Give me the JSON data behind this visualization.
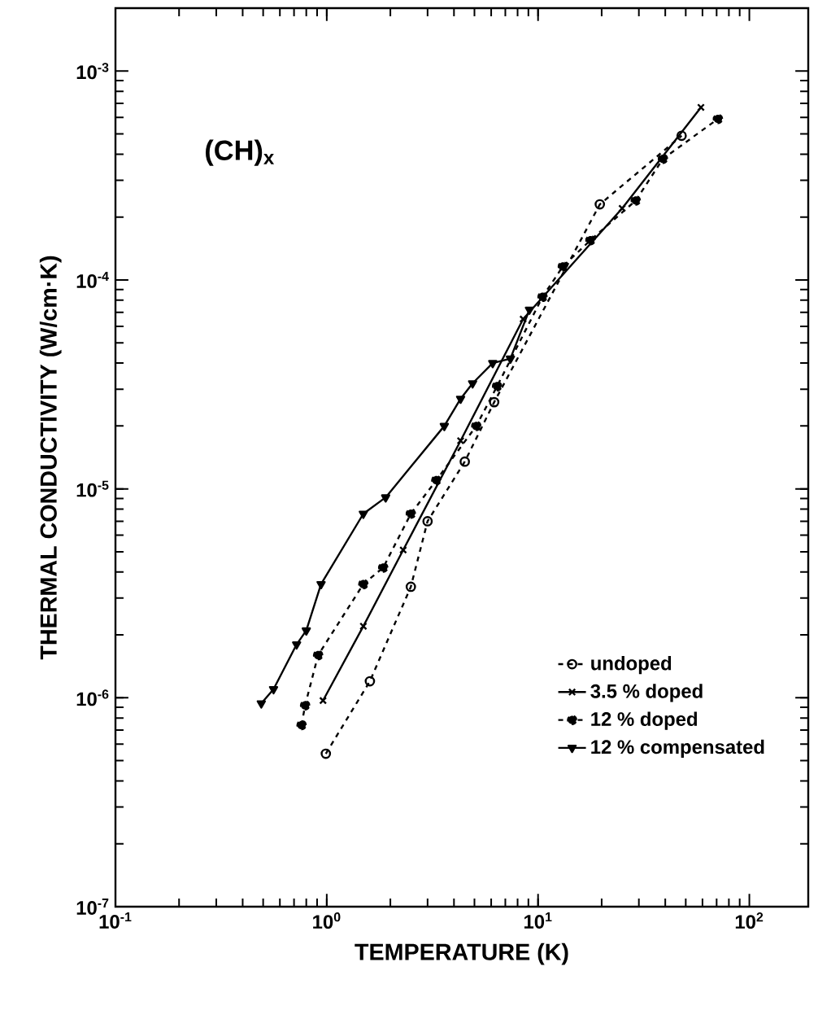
{
  "chart_data": {
    "type": "line",
    "xlabel": "TEMPERATURE (K)",
    "ylabel": "THERMAL CONDUCTIVITY (W/cm·K)",
    "annotations": [
      "(CH)$_{x}$"
    ],
    "log": "xy",
    "xlim": [
      0.1,
      190
    ],
    "ylim": [
      1e-07,
      0.002
    ],
    "xticks": [
      {
        "value": 0.1,
        "label": "10$^{-1}$"
      },
      {
        "value": 1,
        "label": "10$^{0}$"
      },
      {
        "value": 10,
        "label": "10$^{1}$"
      },
      {
        "value": 100,
        "label": "10$^{2}$"
      }
    ],
    "yticks": [
      {
        "value": 1e-07,
        "label": "10$^{-7}$"
      },
      {
        "value": 1e-06,
        "label": "10$^{-6}$"
      },
      {
        "value": 1e-05,
        "label": "10$^{-5}$"
      },
      {
        "value": 0.0001,
        "label": "10$^{-4}$"
      },
      {
        "value": 0.001,
        "label": "10$^{-3}$"
      }
    ],
    "grid": false,
    "legend": "bottom right",
    "series": [
      {
        "name": "undoped",
        "color": "#000000",
        "marker": "circle",
        "line_style": "dashed",
        "x": [
          0.99,
          1.6,
          2.5,
          3.0,
          4.5,
          6.2,
          19.6,
          47.8
        ],
        "values": [
          5.4e-07,
          1.2e-06,
          3.4e-06,
          7e-06,
          1.35e-05,
          2.6e-05,
          0.00023,
          0.00049
        ]
      },
      {
        "name": "3.5 % doped",
        "color": "#000000",
        "marker": "cross",
        "line_style": "solid",
        "x": [
          0.96,
          1.49,
          2.3,
          4.3,
          8.5,
          25,
          59
        ],
        "values": [
          9.7e-07,
          2.2e-06,
          5.1e-06,
          1.7e-05,
          6.5e-05,
          0.00022,
          0.00067
        ]
      },
      {
        "name": "12 % doped",
        "color": "#000000",
        "marker": "dot",
        "line_style": "dashed",
        "x": [
          0.76,
          0.79,
          0.91,
          1.49,
          1.85,
          2.5,
          3.3,
          5.1,
          6.4,
          10.5,
          13.1,
          17.7,
          29,
          39,
          71
        ],
        "values": [
          7.4e-07,
          9.2e-07,
          1.6e-06,
          3.5e-06,
          4.2e-06,
          7.6e-06,
          1.1e-05,
          2e-05,
          3.1e-05,
          8.3e-05,
          0.000116,
          0.000155,
          0.00024,
          0.00038,
          0.00059
        ]
      },
      {
        "name": "12 % compensated",
        "color": "#000000",
        "marker": "triangle",
        "line_style": "solid",
        "x": [
          0.49,
          0.56,
          0.72,
          0.8,
          0.94,
          1.49,
          1.9,
          3.6,
          4.3,
          4.9,
          6.1,
          7.4,
          9.1
        ],
        "values": [
          9.4e-07,
          1.1e-06,
          1.8e-06,
          2.1e-06,
          3.5e-06,
          7.6e-06,
          9.1e-06,
          2e-05,
          2.7e-05,
          3.2e-05,
          4e-05,
          4.2e-05,
          7.2e-05
        ]
      }
    ]
  }
}
